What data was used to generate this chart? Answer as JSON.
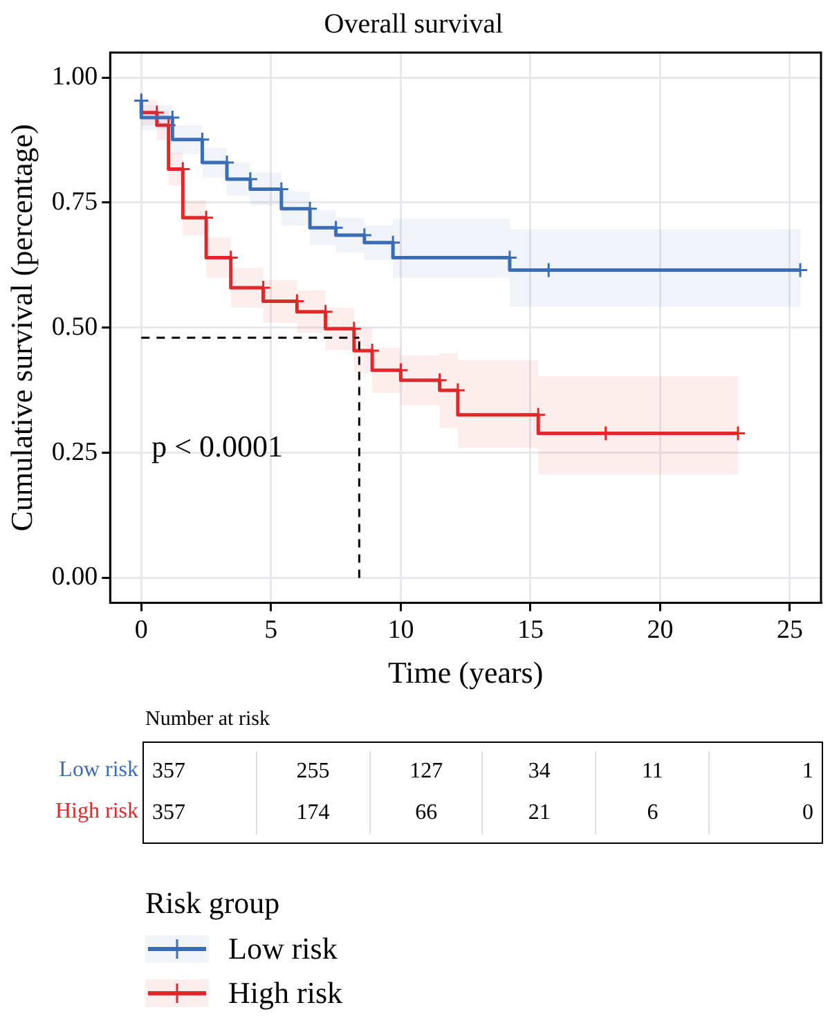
{
  "chart_data": [
    {
      "type": "step",
      "title": "Overall survival",
      "xlabel": "Time (years)",
      "ylabel": "Cumulative survival (percentage)",
      "legend_title": "Risk group",
      "legend": "bottom",
      "grid": true,
      "marker": "cross",
      "line_style": "solid",
      "xlim": [
        -1.2,
        26.2
      ],
      "xticks": [
        0,
        5,
        10,
        15,
        20,
        25
      ],
      "ylim": [
        -0.05,
        1.05
      ],
      "yticks": [
        {
          "value": 0,
          "label": "0.00"
        },
        {
          "value": 0.25,
          "label": "0.25"
        },
        {
          "value": 0.5,
          "label": "0.50"
        },
        {
          "value": 0.75,
          "label": "0.75"
        },
        {
          "value": 1,
          "label": "1.00"
        }
      ],
      "series": [
        {
          "name": "Low risk",
          "color": "#3a6db5",
          "x": [
            0,
            1.2,
            2.35,
            3.3,
            4.2,
            5.4,
            6.5,
            7.5,
            8.6,
            9.7,
            14.2,
            15.7,
            25.4
          ],
          "values": [
            0.954,
            0.92,
            0.876,
            0.83,
            0.797,
            0.777,
            0.738,
            0.7,
            0.685,
            0.67,
            0.64,
            0.615,
            0.615
          ],
          "upper": [
            0.97,
            0.945,
            0.905,
            0.86,
            0.83,
            0.81,
            0.772,
            0.735,
            0.72,
            0.705,
            0.718,
            0.697,
            0.697
          ],
          "lower": [
            0.93,
            0.895,
            0.847,
            0.8,
            0.764,
            0.744,
            0.704,
            0.665,
            0.65,
            0.635,
            0.6,
            0.542,
            0.542
          ]
        },
        {
          "name": "High risk",
          "color": "#e0282a",
          "x": [
            0,
            0.6,
            1.05,
            1.6,
            2.5,
            3.45,
            4.7,
            6,
            7.1,
            8.2,
            8.9,
            10,
            11.5,
            12.2,
            15.3,
            17.9,
            23
          ],
          "values": [
            0.954,
            0.93,
            0.905,
            0.817,
            0.72,
            0.64,
            0.58,
            0.553,
            0.532,
            0.498,
            0.454,
            0.415,
            0.395,
            0.375,
            0.326,
            0.289,
            0.289
          ],
          "upper": [
            0.97,
            0.955,
            0.935,
            0.85,
            0.755,
            0.68,
            0.62,
            0.595,
            0.575,
            0.54,
            0.5,
            0.46,
            0.445,
            0.45,
            0.435,
            0.403,
            0.403
          ],
          "lower": [
            0.93,
            0.905,
            0.875,
            0.784,
            0.685,
            0.6,
            0.54,
            0.51,
            0.49,
            0.455,
            0.41,
            0.37,
            0.345,
            0.3,
            0.26,
            0.207,
            0.207
          ]
        }
      ],
      "ref_lines": [
        {
          "axis": "y",
          "value": 0.48,
          "color": "#000000",
          "line_style": "dashed"
        },
        {
          "axis": "x",
          "value": 8.4,
          "color": "#000000",
          "line_style": "dashed"
        }
      ],
      "annotations": [
        "p < 0.0001"
      ]
    },
    {
      "type": "other",
      "title": "Number at risk",
      "colors": [
        "#3a6db5",
        "#e0282a"
      ],
      "annotations": [
        "Low risk",
        "357",
        "255",
        "127",
        "34",
        "11",
        "1",
        "High risk",
        "357",
        "174",
        "66",
        "21",
        "6",
        "0"
      ]
    }
  ]
}
